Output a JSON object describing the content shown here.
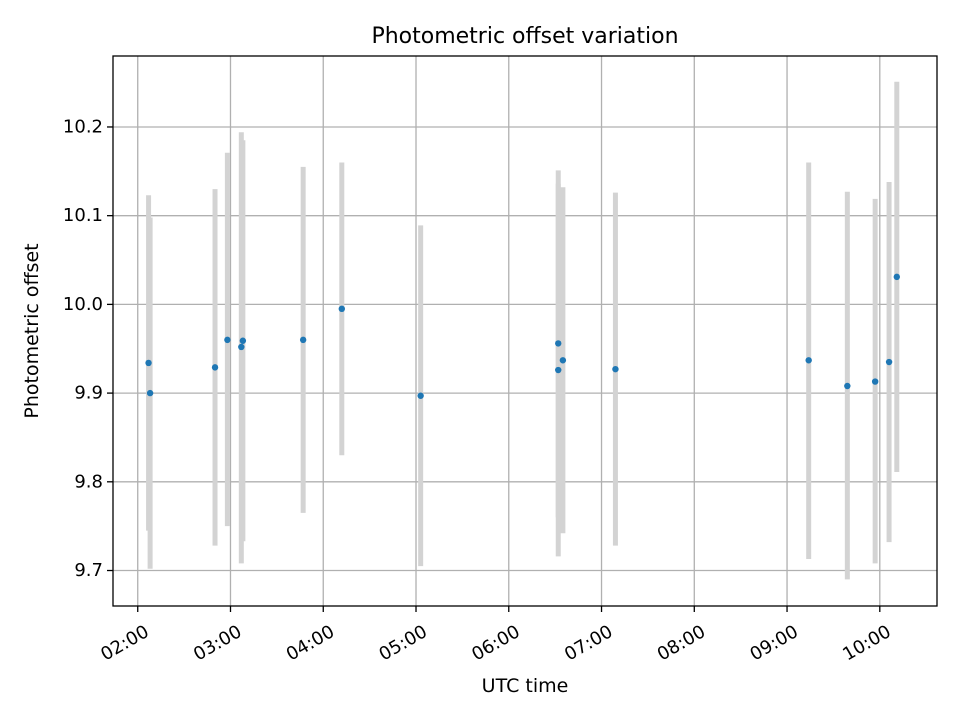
{
  "chart_data": {
    "type": "scatter",
    "title": "Photometric offset variation",
    "xlabel": "UTC time",
    "ylabel": "Photometric offset",
    "x_axis": "time (HH:MM, UTC)",
    "xlim": [
      "01:44",
      "10:37"
    ],
    "ylim": [
      9.66,
      10.28
    ],
    "grid": true,
    "xticks": [
      "02:00",
      "03:00",
      "04:00",
      "05:00",
      "06:00",
      "07:00",
      "08:00",
      "09:00",
      "10:00"
    ],
    "yticks": [
      "9.7",
      "9.8",
      "9.9",
      "10.0",
      "10.1",
      "10.2"
    ],
    "ytick_values": [
      9.7,
      9.8,
      9.9,
      10.0,
      10.1,
      10.2
    ],
    "point_color": "#1f77b4",
    "errorbar_color": "#d3d3d3",
    "series": [
      {
        "points": [
          {
            "x": "02:07",
            "y": 9.934,
            "low": 9.745,
            "high": 10.123
          },
          {
            "x": "02:08",
            "y": 9.9,
            "low": 9.702,
            "high": 10.098
          },
          {
            "x": "02:50",
            "y": 9.929,
            "low": 9.728,
            "high": 10.13
          },
          {
            "x": "02:58",
            "y": 9.96,
            "low": 9.75,
            "high": 10.171
          },
          {
            "x": "03:07",
            "y": 9.952,
            "low": 9.708,
            "high": 10.194
          },
          {
            "x": "03:08",
            "y": 9.959,
            "low": 9.733,
            "high": 10.185
          },
          {
            "x": "03:47",
            "y": 9.96,
            "low": 9.765,
            "high": 10.155
          },
          {
            "x": "04:12",
            "y": 9.995,
            "low": 9.83,
            "high": 10.16
          },
          {
            "x": "05:03",
            "y": 9.897,
            "low": 9.705,
            "high": 10.089
          },
          {
            "x": "06:32",
            "y": 9.956,
            "low": 9.76,
            "high": 10.151
          },
          {
            "x": "06:32",
            "y": 9.926,
            "low": 9.716,
            "high": 10.136
          },
          {
            "x": "06:35",
            "y": 9.937,
            "low": 9.742,
            "high": 10.132
          },
          {
            "x": "07:09",
            "y": 9.927,
            "low": 9.728,
            "high": 10.126
          },
          {
            "x": "09:14",
            "y": 9.937,
            "low": 9.713,
            "high": 10.16
          },
          {
            "x": "09:39",
            "y": 9.908,
            "low": 9.69,
            "high": 10.127
          },
          {
            "x": "09:57",
            "y": 9.913,
            "low": 9.708,
            "high": 10.119
          },
          {
            "x": "10:06",
            "y": 9.935,
            "low": 9.732,
            "high": 10.138
          },
          {
            "x": "10:11",
            "y": 10.031,
            "low": 9.811,
            "high": 10.251
          }
        ]
      }
    ]
  }
}
